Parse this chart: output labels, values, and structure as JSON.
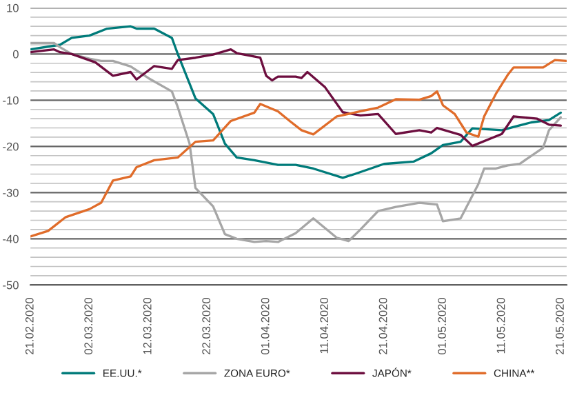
{
  "chart_data": {
    "type": "line",
    "xlim": [
      "2020-02-21",
      "2020-05-22"
    ],
    "xticks": [
      {
        "value": "2020-02-21",
        "label": "21.02.2020"
      },
      {
        "value": "2020-03-02",
        "label": "02.03.2020"
      },
      {
        "value": "2020-03-12",
        "label": "12.03.2020"
      },
      {
        "value": "2020-03-22",
        "label": "22.03.2020"
      },
      {
        "value": "2020-04-01",
        "label": "01.04.2020"
      },
      {
        "value": "2020-04-11",
        "label": "11.04.2020"
      },
      {
        "value": "2020-04-21",
        "label": "21.04.2020"
      },
      {
        "value": "2020-05-01",
        "label": "01.05.2020"
      },
      {
        "value": "2020-05-11",
        "label": "11.05.2020"
      },
      {
        "value": "2020-05-21",
        "label": "21.05.2020"
      }
    ],
    "ylim": [
      -50,
      10
    ],
    "yticks": [
      10,
      {
        "value": 8,
        "label": null
      },
      {
        "value": 6,
        "label": null
      },
      {
        "value": 4,
        "label": null
      },
      {
        "value": 2,
        "label": null
      },
      0,
      {
        "value": -2,
        "label": null
      },
      {
        "value": -4,
        "label": null
      },
      {
        "value": -6,
        "label": null
      },
      {
        "value": -8,
        "label": null
      },
      -10,
      {
        "value": -12,
        "label": null
      },
      {
        "value": -14,
        "label": null
      },
      {
        "value": -16,
        "label": null
      },
      {
        "value": -18,
        "label": null
      },
      -20,
      {
        "value": -22,
        "label": null
      },
      {
        "value": -24,
        "label": null
      },
      {
        "value": -26,
        "label": null
      },
      {
        "value": -28,
        "label": null
      },
      -30,
      {
        "value": -32,
        "label": null
      },
      {
        "value": -34,
        "label": null
      },
      {
        "value": -36,
        "label": null
      },
      {
        "value": -38,
        "label": null
      },
      -40,
      {
        "value": -42,
        "label": null
      },
      {
        "value": -44,
        "label": null
      },
      {
        "value": -46,
        "label": null
      },
      {
        "value": -48,
        "label": null
      },
      -50
    ],
    "grid": "y",
    "legend": "bottom",
    "marker": "none",
    "line_style": "solid",
    "series": [
      {
        "name": "EE.UU.*",
        "color": "#007b7a",
        "x": [
          "2020-02-21",
          "2020-02-26",
          "2020-02-28",
          "2020-03-02",
          "2020-03-05",
          "2020-03-09",
          "2020-03-10",
          "2020-03-13",
          "2020-03-16",
          "2020-03-17",
          "2020-03-20",
          "2020-03-23",
          "2020-03-25",
          "2020-03-27",
          "2020-03-30",
          "2020-04-03",
          "2020-04-06",
          "2020-04-09",
          "2020-04-14",
          "2020-04-16",
          "2020-04-21",
          "2020-04-26",
          "2020-04-29",
          "2020-05-01",
          "2020-05-04",
          "2020-05-06",
          "2020-05-11",
          "2020-05-13",
          "2020-05-16",
          "2020-05-19",
          "2020-05-21"
        ],
        "values": [
          1,
          2,
          3.5,
          4,
          5.5,
          6,
          5.5,
          5.5,
          3.5,
          0,
          -9.6,
          -13,
          -19.4,
          -22.4,
          -23,
          -24,
          -24,
          -24.8,
          -26.8,
          -26,
          -23.8,
          -23.3,
          -21.5,
          -19.7,
          -19,
          -16.1,
          -16.5,
          -15.8,
          -14.8,
          -14.3,
          -12.7
        ]
      },
      {
        "name": "ZONA EURO*",
        "color": "#a6a6a6",
        "x": [
          "2020-02-21",
          "2020-02-25",
          "2020-02-26",
          "2020-02-28",
          "2020-03-02",
          "2020-03-04",
          "2020-03-06",
          "2020-03-09",
          "2020-03-12",
          "2020-03-16",
          "2020-03-17",
          "2020-03-19",
          "2020-03-20",
          "2020-03-23",
          "2020-03-25",
          "2020-03-27",
          "2020-03-30",
          "2020-04-01",
          "2020-04-03",
          "2020-04-06",
          "2020-04-09",
          "2020-04-13",
          "2020-04-15",
          "2020-04-17",
          "2020-04-20",
          "2020-04-23",
          "2020-04-27",
          "2020-04-30",
          "2020-05-01",
          "2020-05-04",
          "2020-05-07",
          "2020-05-08",
          "2020-05-10",
          "2020-05-12",
          "2020-05-14",
          "2020-05-18",
          "2020-05-19",
          "2020-05-21"
        ],
        "values": [
          2.4,
          2.4,
          1.5,
          0,
          -1,
          -1.5,
          -1.5,
          -2.7,
          -5.2,
          -8.1,
          -11.5,
          -19.4,
          -29,
          -33,
          -39,
          -40,
          -40.7,
          -40.5,
          -40.7,
          -38.8,
          -35.6,
          -39.8,
          -40.5,
          -38,
          -34,
          -33.1,
          -32.2,
          -32.6,
          -36.2,
          -35.6,
          -28.2,
          -24.8,
          -24.8,
          -24.1,
          -23.8,
          -20.3,
          -16.5,
          -13.7
        ]
      },
      {
        "name": "JAPÓN*",
        "color": "#6d0e3f",
        "x": [
          "2020-02-21",
          "2020-02-25",
          "2020-02-26",
          "2020-02-28",
          "2020-03-03",
          "2020-03-06",
          "2020-03-09",
          "2020-03-10",
          "2020-03-13",
          "2020-03-16",
          "2020-03-17",
          "2020-03-20",
          "2020-03-23",
          "2020-03-26",
          "2020-03-27",
          "2020-03-31",
          "2020-04-01",
          "2020-04-02",
          "2020-04-03",
          "2020-04-06",
          "2020-04-07",
          "2020-04-08",
          "2020-04-11",
          "2020-04-14",
          "2020-04-17",
          "2020-04-20",
          "2020-04-23",
          "2020-04-27",
          "2020-04-29",
          "2020-04-30",
          "2020-05-04",
          "2020-05-06",
          "2020-05-11",
          "2020-05-13",
          "2020-05-17",
          "2020-05-19",
          "2020-05-21"
        ],
        "values": [
          0.4,
          1,
          0.4,
          0,
          -1.8,
          -4.7,
          -3.9,
          -5.5,
          -2.6,
          -3.2,
          -1.3,
          -0.8,
          -0.1,
          1,
          0.2,
          -0.8,
          -4.7,
          -5.7,
          -4.9,
          -4.9,
          -5.2,
          -3.9,
          -7.2,
          -12.6,
          -13.3,
          -13,
          -17.3,
          -16.5,
          -17,
          -16,
          -17.5,
          -19.9,
          -17.3,
          -13.5,
          -14,
          -15.3,
          -15.5
        ]
      },
      {
        "name": "CHINA**",
        "color": "#e06c2a",
        "x": [
          "2020-02-21",
          "2020-02-24",
          "2020-02-27",
          "2020-03-02",
          "2020-03-04",
          "2020-03-06",
          "2020-03-09",
          "2020-03-10",
          "2020-03-13",
          "2020-03-17",
          "2020-03-20",
          "2020-03-23",
          "2020-03-26",
          "2020-03-30",
          "2020-03-31",
          "2020-04-03",
          "2020-04-05",
          "2020-04-07",
          "2020-04-09",
          "2020-04-13",
          "2020-04-17",
          "2020-04-20",
          "2020-04-23",
          "2020-04-27",
          "2020-04-29",
          "2020-04-30",
          "2020-05-01",
          "2020-05-03",
          "2020-05-05",
          "2020-05-07",
          "2020-05-08",
          "2020-05-10",
          "2020-05-12",
          "2020-05-13",
          "2020-05-18",
          "2020-05-20",
          "2020-05-22"
        ],
        "values": [
          -39.5,
          -38.3,
          -35.3,
          -33.6,
          -32.2,
          -27.4,
          -26.5,
          -24.5,
          -23,
          -22.4,
          -19,
          -18.7,
          -14.5,
          -12.7,
          -10.8,
          -12.4,
          -14.5,
          -16.5,
          -17.4,
          -13.5,
          -12.4,
          -11.6,
          -9.8,
          -9.9,
          -9.1,
          -8.1,
          -11.1,
          -13,
          -17,
          -17.9,
          -13.5,
          -8.6,
          -4.5,
          -2.9,
          -2.9,
          -1.3,
          -1.5
        ]
      }
    ]
  }
}
